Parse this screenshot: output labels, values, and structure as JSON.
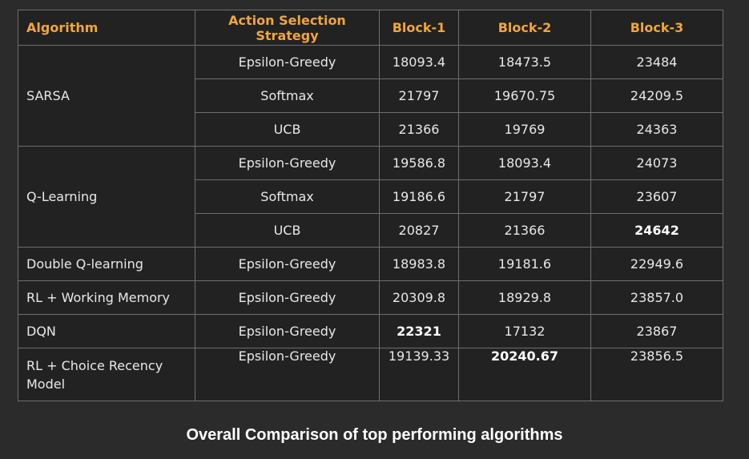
{
  "table": {
    "headers": [
      "Algorithm",
      "Action Selection Strategy",
      "Block-1",
      "Block-2",
      "Block-3"
    ],
    "groups": [
      {
        "algorithm": "SARSA",
        "rows": [
          [
            "Epsilon-Greedy",
            "18093.4",
            "18473.5",
            "23484"
          ],
          [
            "Softmax",
            "21797",
            "19670.75",
            "24209.5"
          ],
          [
            "UCB",
            "21366",
            "19769",
            "24363"
          ]
        ]
      },
      {
        "algorithm": "Q-Learning",
        "rows": [
          [
            "Epsilon-Greedy",
            "19586.8",
            "18093.4",
            "24073"
          ],
          [
            "Softmax",
            "19186.6",
            "21797",
            "23607"
          ],
          [
            "UCB",
            "20827",
            "21366",
            "24642"
          ]
        ]
      },
      {
        "algorithm": "Double Q-learning",
        "rows": [
          [
            "Epsilon-Greedy",
            "18983.8",
            "19181.6",
            "22949.6"
          ]
        ]
      },
      {
        "algorithm": "RL + Working Memory",
        "rows": [
          [
            "Epsilon-Greedy",
            "20309.8",
            "18929.8",
            "23857.0"
          ]
        ]
      },
      {
        "algorithm": "DQN",
        "rows": [
          [
            "Epsilon-Greedy",
            "22321",
            "17132",
            "23867"
          ]
        ]
      },
      {
        "algorithm": "RL + Choice Recency Model",
        "rows": [
          [
            "Epsilon-Greedy",
            "19139.33",
            "20240.67",
            "23856.5"
          ]
        ]
      }
    ]
  },
  "caption": "Overall Comparison of top performing algorithms",
  "colors": {
    "header_text": "#f0a63c",
    "background": "#2b2b2b",
    "table_background": "#222222",
    "border": "#6e6e6e"
  }
}
